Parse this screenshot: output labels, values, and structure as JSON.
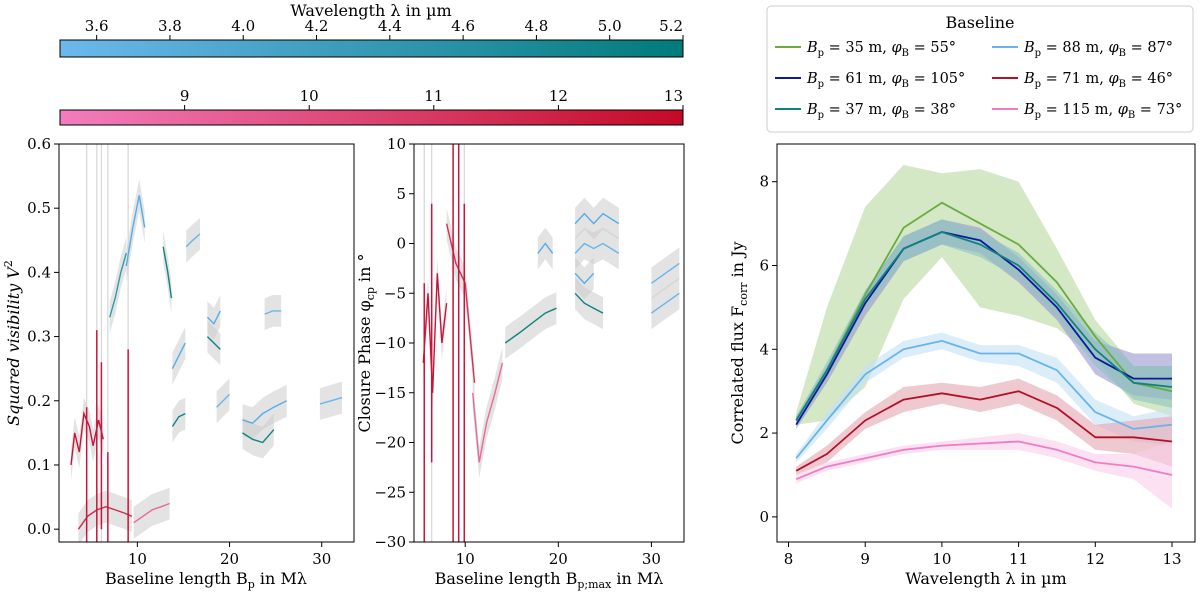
{
  "colorbars": {
    "lm": {
      "title": "Wavelength λ in µm",
      "range": [
        3.5,
        5.2
      ],
      "ticks": [
        3.6,
        3.8,
        4.0,
        4.2,
        4.4,
        4.6,
        4.8,
        5.0,
        5.2
      ],
      "tick_labels": [
        "3.6",
        "3.8",
        "4.0",
        "4.2",
        "4.4",
        "4.6",
        "4.8",
        "5.0",
        "5.2"
      ],
      "color_low": "#6cb8ee",
      "color_high": "#007b7a"
    },
    "n": {
      "range": [
        8.0,
        13.0
      ],
      "ticks": [
        9,
        10,
        11,
        12,
        13
      ],
      "tick_labels": [
        "9",
        "10",
        "11",
        "12",
        "13"
      ],
      "color_low": "#f37dbd",
      "color_high": "#c30a25"
    }
  },
  "chart_data": [
    {
      "type": "line",
      "id": "visibility",
      "ylabel_main": "Squared visibility V",
      "ylabel_sup": "2",
      "xlabel_main": "Baseline length B",
      "xlabel_sub": "p",
      "xlabel_tail": " in Mλ",
      "xlim": [
        1.5,
        33.5
      ],
      "ylim": [
        -0.02,
        0.6
      ],
      "xticks": [
        10,
        20,
        30
      ],
      "yticks": [
        0.0,
        0.1,
        0.2,
        0.3,
        0.4,
        0.5,
        0.6
      ],
      "ytick_labels": [
        "0.0",
        "0.1",
        "0.2",
        "0.3",
        "0.4",
        "0.5",
        "0.6"
      ],
      "lm_segments": [
        {
          "color": "#55ade8",
          "x": [
            8.8,
            9.5,
            10.2,
            10.8
          ],
          "y": [
            0.41,
            0.47,
            0.52,
            0.47
          ]
        },
        {
          "color": "#2c9ea6",
          "x": [
            7.0,
            7.6,
            8.2,
            8.8
          ],
          "y": [
            0.33,
            0.36,
            0.4,
            0.43
          ]
        },
        {
          "color": "#0f8283",
          "x": [
            12.8,
            13.3,
            13.7
          ],
          "y": [
            0.44,
            0.4,
            0.36
          ]
        },
        {
          "color": "#67b6ea",
          "x": [
            15.3,
            16.0,
            16.8
          ],
          "y": [
            0.44,
            0.45,
            0.46
          ]
        },
        {
          "color": "#55ade8",
          "x": [
            13.8,
            14.5,
            15.2
          ],
          "y": [
            0.25,
            0.27,
            0.29
          ]
        },
        {
          "color": "#0f8283",
          "x": [
            13.8,
            14.5,
            15.2
          ],
          "y": [
            0.16,
            0.175,
            0.18
          ]
        },
        {
          "color": "#55ade8",
          "x": [
            17.6,
            18.3,
            19.0
          ],
          "y": [
            0.33,
            0.32,
            0.34
          ]
        },
        {
          "color": "#0f8283",
          "x": [
            17.6,
            18.3,
            19.0
          ],
          "y": [
            0.3,
            0.29,
            0.28
          ]
        },
        {
          "color": "#67b6ea",
          "x": [
            18.6,
            19.3,
            20.0
          ],
          "y": [
            0.19,
            0.2,
            0.21
          ]
        },
        {
          "color": "#55ade8",
          "x": [
            21.4,
            22.5,
            23.6,
            24.8,
            26.2
          ],
          "y": [
            0.17,
            0.165,
            0.18,
            0.19,
            0.2
          ]
        },
        {
          "color": "#0f8283",
          "x": [
            21.4,
            22.5,
            23.6,
            24.8
          ],
          "y": [
            0.15,
            0.14,
            0.135,
            0.155
          ]
        },
        {
          "color": "#67b6ea",
          "x": [
            23.8,
            24.7,
            25.6
          ],
          "y": [
            0.335,
            0.34,
            0.34
          ]
        },
        {
          "color": "#67b6ea",
          "x": [
            29.8,
            31.0,
            32.2
          ],
          "y": [
            0.195,
            0.2,
            0.205
          ]
        }
      ],
      "n_segments": [
        {
          "color": "#c9153a",
          "x": [
            2.8,
            3.2,
            3.7,
            4.2,
            4.8,
            5.2,
            5.8,
            6.3
          ],
          "y": [
            0.1,
            0.15,
            0.12,
            0.18,
            0.16,
            0.13,
            0.17,
            0.14
          ]
        },
        {
          "color": "#cf2a4a",
          "x": [
            3.6,
            4.6,
            5.6,
            6.6,
            7.6,
            8.6,
            9.4
          ],
          "y": [
            0.0,
            0.02,
            0.03,
            0.035,
            0.03,
            0.025,
            0.02
          ]
        },
        {
          "color": "#e46a9a",
          "x": [
            9.6,
            10.6,
            11.6,
            12.6,
            13.5
          ],
          "y": [
            0.01,
            0.02,
            0.03,
            0.035,
            0.04
          ]
        }
      ],
      "n_spikes": [
        {
          "x": 5.6,
          "y0": -0.02,
          "y1": 0.31
        },
        {
          "x": 4.5,
          "y0": -0.02,
          "y1": 0.19
        },
        {
          "x": 6.1,
          "y0": 0.0,
          "y1": 0.26
        },
        {
          "x": 9.0,
          "y0": -0.02,
          "y1": 0.28
        },
        {
          "x": 6.8,
          "y0": -0.02,
          "y1": 0.12
        }
      ]
    },
    {
      "type": "line",
      "id": "closure_phase",
      "ylabel_main": "Closure Phase φ",
      "ylabel_sub": "cp",
      "ylabel_tail": " in °",
      "xlabel_main": "Baseline length B",
      "xlabel_sub": "p;max",
      "xlabel_tail": " in Mλ",
      "xlim": [
        4.5,
        33.5
      ],
      "ylim": [
        -30,
        10
      ],
      "xticks": [
        10,
        20,
        30
      ],
      "yticks": [
        -30,
        -25,
        -20,
        -15,
        -10,
        -5,
        0,
        5,
        10
      ],
      "ytick_labels": [
        "−30",
        "−25",
        "−20",
        "−15",
        "−10",
        "−5",
        "0",
        "5",
        "10"
      ],
      "lm_segments": [
        {
          "color": "#55ade8",
          "x": [
            17.8,
            18.6,
            19.4
          ],
          "y": [
            -1,
            0,
            -1
          ]
        },
        {
          "color": "#55ade8",
          "x": [
            21.8,
            22.8,
            23.8,
            24.8,
            26.5
          ],
          "y": [
            2,
            3,
            2,
            3,
            2
          ]
        },
        {
          "color": "#67b6ea",
          "x": [
            21.8,
            22.8,
            23.8,
            24.8,
            26.5
          ],
          "y": [
            -1,
            0,
            -0.5,
            0,
            -1
          ]
        },
        {
          "color": "#0f8283",
          "x": [
            14.3,
            15.8,
            17.2,
            18.6,
            19.8
          ],
          "y": [
            -10,
            -9,
            -8,
            -7,
            -6.5
          ]
        },
        {
          "color": "#0f8283",
          "x": [
            21.8,
            22.8,
            23.8,
            24.8
          ],
          "y": [
            -5,
            -6,
            -6.5,
            -7
          ]
        },
        {
          "color": "#55ade8",
          "x": [
            21.8,
            22.8,
            23.8
          ],
          "y": [
            -3,
            -4,
            -3
          ]
        },
        {
          "color": "#67b6ea",
          "x": [
            30.0,
            31.5,
            33.0
          ],
          "y": [
            -4,
            -3,
            -2
          ]
        },
        {
          "color": "#67b6ea",
          "x": [
            30.0,
            31.5,
            33.0
          ],
          "y": [
            -7,
            -6,
            -5
          ]
        }
      ],
      "n_segments": [
        {
          "color": "#c9153a",
          "x": [
            5.5,
            6.0,
            6.5,
            7.0,
            7.5,
            8.0
          ],
          "y": [
            -12,
            -5,
            -15,
            -3,
            -10,
            -6
          ]
        },
        {
          "color": "#d42f55",
          "x": [
            8.0,
            9.0,
            10.0,
            11.0
          ],
          "y": [
            2,
            -2,
            -4,
            -14
          ]
        },
        {
          "color": "#e46a9a",
          "x": [
            10.8,
            11.5,
            12.3,
            13.2,
            14.0
          ],
          "y": [
            -15,
            -22,
            -18,
            -15,
            -12
          ]
        }
      ],
      "n_spikes": [
        {
          "x": 5.6,
          "y0": -30,
          "y1": -4
        },
        {
          "x": 8.7,
          "y0": -30,
          "y1": 10
        },
        {
          "x": 9.3,
          "y0": -30,
          "y1": 10
        },
        {
          "x": 9.9,
          "y0": -30,
          "y1": 4
        },
        {
          "x": 6.4,
          "y0": -22,
          "y1": 4
        }
      ]
    },
    {
      "type": "area",
      "id": "correlated_flux",
      "ylabel_main": "Correlated flux F",
      "ylabel_sub": "corr",
      "ylabel_tail": " in Jy",
      "xlabel": "Wavelength λ in µm",
      "xlim": [
        7.85,
        13.3
      ],
      "ylim": [
        -0.6,
        8.9
      ],
      "xticks": [
        8,
        9,
        10,
        11,
        12,
        13
      ],
      "yticks": [
        0,
        2,
        4,
        6,
        8
      ],
      "legend": {
        "title": "Baseline",
        "entries": [
          {
            "Bp": "35",
            "phi": "55",
            "color": "#6aab42"
          },
          {
            "Bp": "61",
            "phi": "105",
            "color": "#0c1b9a"
          },
          {
            "Bp": "37",
            "phi": "38",
            "color": "#13827f"
          },
          {
            "Bp": "88",
            "phi": "87",
            "color": "#68b5ea"
          },
          {
            "Bp": "71",
            "phi": "46",
            "color": "#b5102a"
          },
          {
            "Bp": "115",
            "phi": "73",
            "color": "#ef7cc4"
          }
        ]
      },
      "x": [
        8.1,
        8.5,
        9.0,
        9.5,
        10.0,
        10.5,
        11.0,
        11.5,
        12.0,
        12.5,
        13.0
      ],
      "series": [
        {
          "name": "Bp = 35 m, φB = 55°",
          "color": "#6aab42",
          "band": "#b7d9a0",
          "values": [
            2.3,
            3.5,
            5.3,
            6.9,
            7.5,
            7.0,
            6.5,
            5.6,
            4.3,
            3.2,
            3.0
          ],
          "lower": [
            2.2,
            2.3,
            3.1,
            5.2,
            6.2,
            5.0,
            4.8,
            4.5,
            3.8,
            2.7,
            2.4
          ],
          "upper": [
            2.5,
            5.0,
            7.4,
            8.4,
            8.2,
            8.3,
            8.0,
            6.4,
            4.7,
            3.6,
            3.6
          ]
        },
        {
          "name": "Bp = 61 m, φB = 105°",
          "color": "#0c1b9a",
          "band": "#9698cf",
          "values": [
            2.2,
            3.4,
            5.1,
            6.4,
            6.8,
            6.6,
            5.9,
            5.0,
            3.8,
            3.3,
            3.3
          ],
          "lower": [
            2.1,
            3.2,
            4.8,
            6.1,
            6.5,
            6.3,
            5.6,
            4.7,
            3.4,
            2.9,
            2.8
          ],
          "upper": [
            2.4,
            3.6,
            5.4,
            6.7,
            7.1,
            6.9,
            6.2,
            5.3,
            4.2,
            3.9,
            3.9
          ]
        },
        {
          "name": "Bp = 37 m, φB = 38°",
          "color": "#13827f",
          "band": "#8cc3c1",
          "values": [
            2.3,
            3.5,
            5.2,
            6.4,
            6.8,
            6.5,
            6.0,
            5.1,
            4.0,
            3.2,
            3.1
          ],
          "lower": [
            2.2,
            3.3,
            5.0,
            6.1,
            6.5,
            6.2,
            5.7,
            4.8,
            3.6,
            2.8,
            2.6
          ],
          "upper": [
            2.4,
            3.7,
            5.4,
            6.7,
            7.1,
            6.8,
            6.3,
            5.4,
            4.4,
            3.6,
            3.6
          ]
        },
        {
          "name": "Bp = 88 m, φB = 87°",
          "color": "#68b5ea",
          "band": "#c4e1f6",
          "values": [
            1.4,
            2.3,
            3.4,
            4.0,
            4.2,
            3.9,
            3.9,
            3.5,
            2.5,
            2.1,
            2.2
          ],
          "lower": [
            1.3,
            2.1,
            3.2,
            3.8,
            4.0,
            3.7,
            3.6,
            3.2,
            2.2,
            1.8,
            1.7
          ],
          "upper": [
            1.5,
            2.5,
            3.6,
            4.2,
            4.4,
            4.1,
            4.1,
            3.8,
            2.8,
            2.4,
            2.6
          ]
        },
        {
          "name": "Bp = 71 m, φB = 46°",
          "color": "#b5102a",
          "band": "#e5a5b0",
          "values": [
            1.1,
            1.5,
            2.3,
            2.8,
            2.95,
            2.8,
            3.0,
            2.6,
            1.9,
            1.9,
            1.8
          ],
          "lower": [
            1.0,
            1.3,
            2.1,
            2.5,
            2.7,
            2.5,
            2.7,
            2.3,
            1.6,
            1.5,
            1.2
          ],
          "upper": [
            1.2,
            1.7,
            2.5,
            3.1,
            3.2,
            3.1,
            3.3,
            2.9,
            2.2,
            2.3,
            2.4
          ]
        },
        {
          "name": "Bp = 115 m, φB = 73°",
          "color": "#ef7cc4",
          "band": "#f9cde8",
          "values": [
            0.9,
            1.2,
            1.4,
            1.6,
            1.7,
            1.75,
            1.8,
            1.6,
            1.3,
            1.2,
            1.0
          ],
          "lower": [
            0.8,
            1.1,
            1.3,
            1.5,
            1.6,
            1.6,
            1.6,
            1.4,
            1.1,
            0.9,
            0.2
          ],
          "upper": [
            1.0,
            1.3,
            1.5,
            1.7,
            1.8,
            1.9,
            2.0,
            1.8,
            1.5,
            1.5,
            1.8
          ]
        }
      ]
    }
  ]
}
